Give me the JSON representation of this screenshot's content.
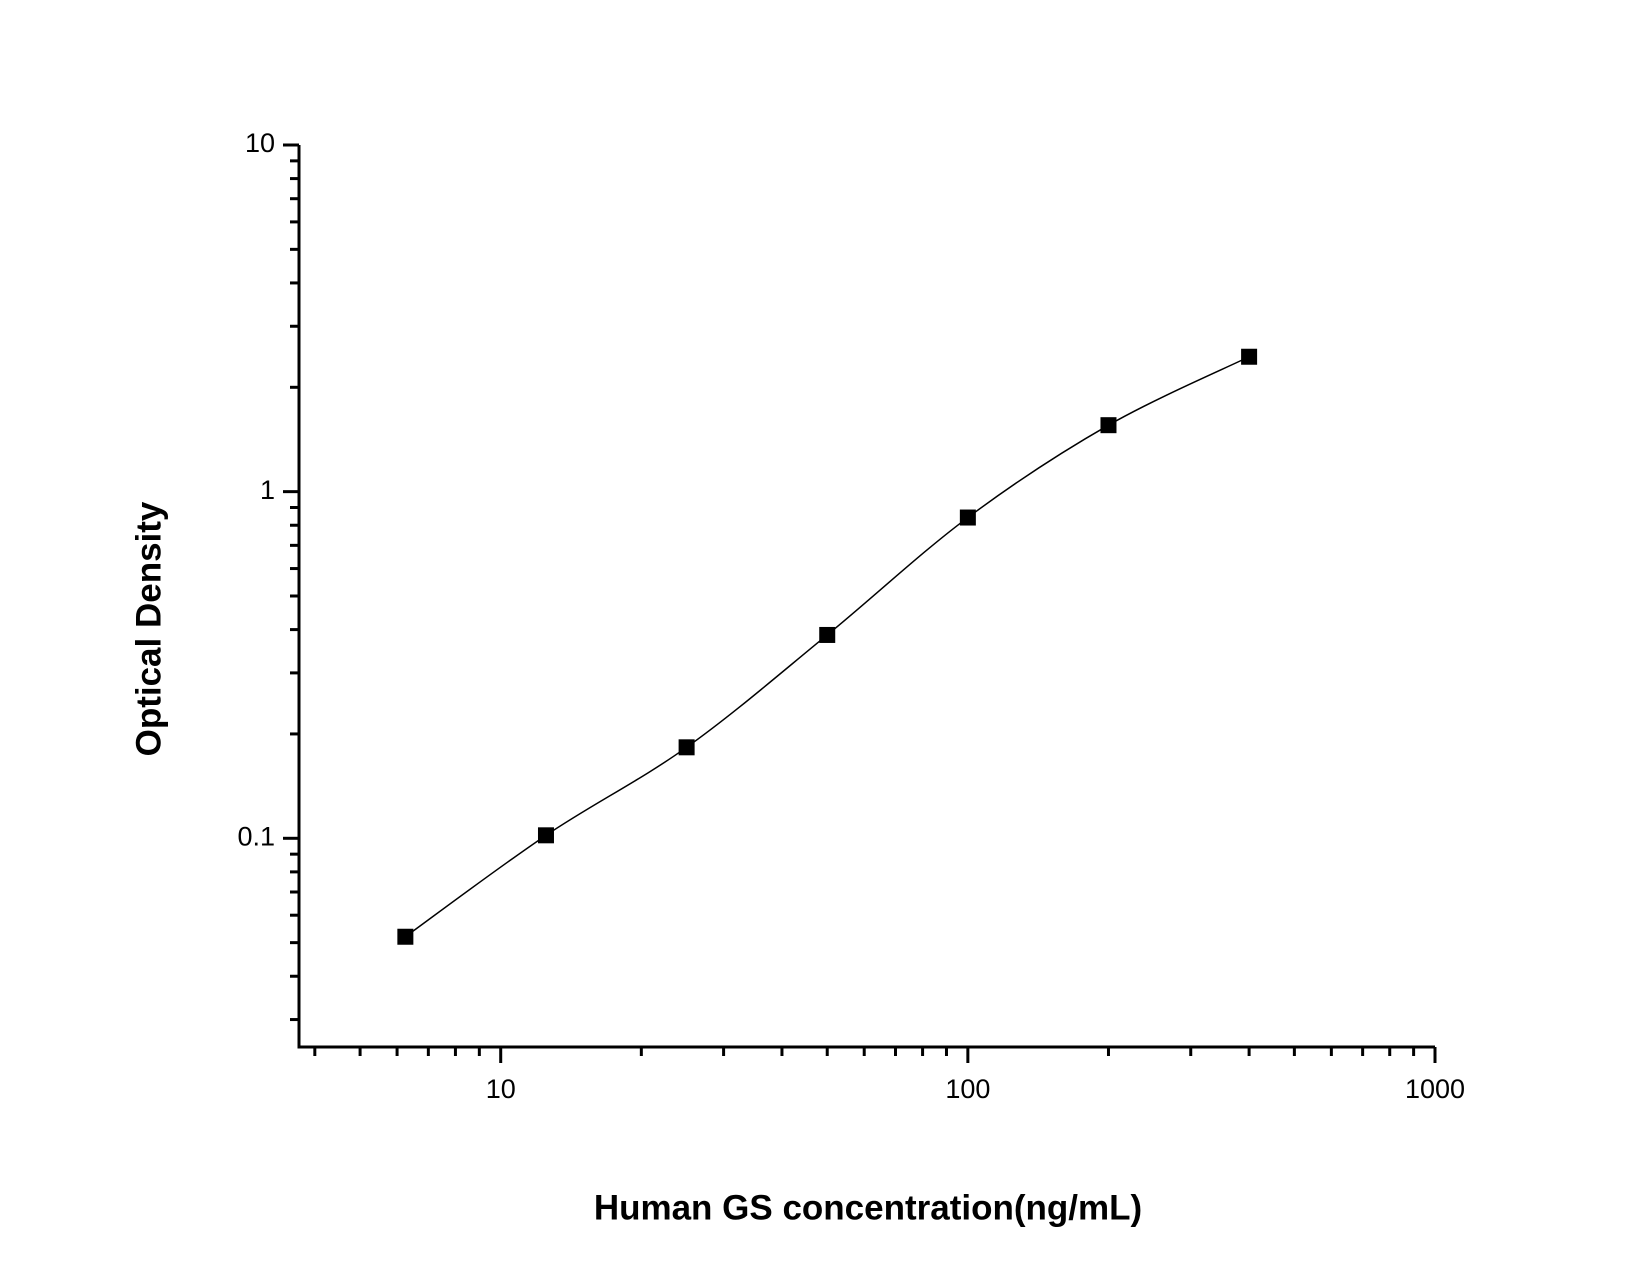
{
  "chart_data": {
    "type": "scatter",
    "x_label": "Human GS concentration(ng/mL)",
    "y_label": "Optical Density",
    "x": [
      6.25,
      12.5,
      25,
      50,
      100,
      200,
      400
    ],
    "series": [
      {
        "color": "#000000",
        "values": [
          0.052,
          0.102,
          0.183,
          0.386,
          0.842,
          1.555,
          2.45
        ]
      }
    ],
    "fit_line": true,
    "x_log": true,
    "y_log": true,
    "xlim": [
      3.7,
      1000
    ],
    "ylim": [
      0.025,
      10
    ],
    "xticks": [
      10,
      100,
      1000
    ],
    "yticks": [
      0.1,
      1,
      10
    ],
    "xminorticks": [
      4,
      5,
      6,
      7,
      8,
      9,
      20,
      30,
      40,
      50,
      60,
      70,
      80,
      90,
      200,
      300,
      400,
      500,
      600,
      700,
      800,
      900
    ],
    "yminorticks": [
      0.03,
      0.04,
      0.05,
      0.06,
      0.07,
      0.08,
      0.09,
      0.2,
      0.3,
      0.4,
      0.5,
      0.6,
      0.7,
      0.8,
      0.9,
      2,
      3,
      4,
      5,
      6,
      7,
      8,
      9
    ]
  }
}
